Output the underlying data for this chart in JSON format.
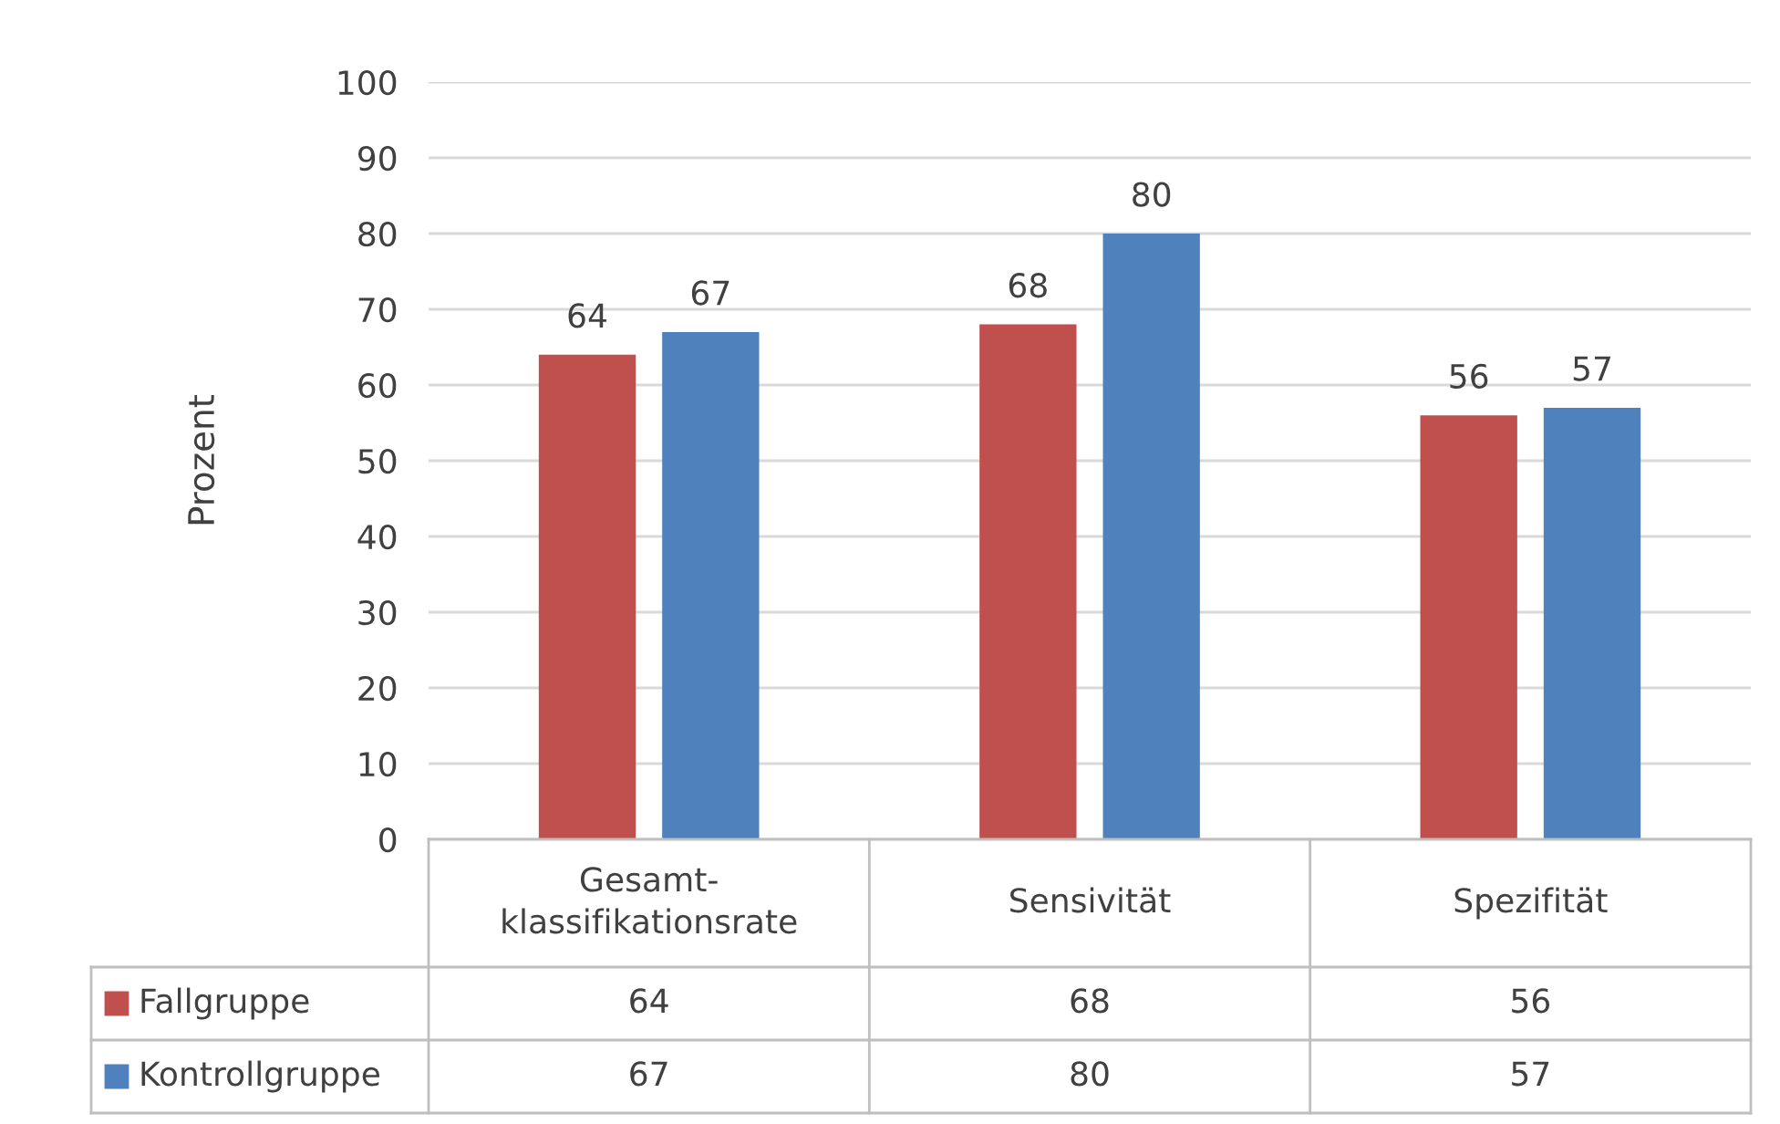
{
  "chart_data": {
    "type": "bar",
    "ylabel": "Prozent",
    "categories": [
      "Gesamt-\nklassifikationsrate",
      "Sensivität",
      "Spezifität"
    ],
    "series": [
      {
        "name": "Fallgruppe",
        "color": "#c0504d",
        "values": [
          64,
          68,
          56
        ]
      },
      {
        "name": "Kontrollgruppe",
        "color": "#4f81bd",
        "values": [
          67,
          80,
          57
        ]
      }
    ],
    "ylim": [
      0,
      100
    ],
    "yticks": [
      0,
      10,
      20,
      30,
      40,
      50,
      60,
      70,
      80,
      90,
      100
    ],
    "grid": "y",
    "data_labels": true,
    "legend": "bottom",
    "annotations": [
      "64",
      "68",
      "56",
      "67",
      "80",
      "57"
    ]
  }
}
